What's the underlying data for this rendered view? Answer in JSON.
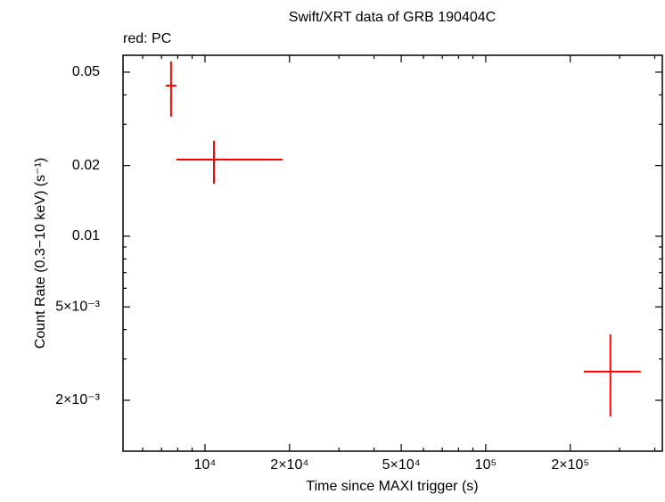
{
  "chart_data": {
    "type": "errorbar",
    "title": "Swift/XRT data of GRB 190404C",
    "subtitle": "red: PC",
    "x_label": "Time since MAXI trigger (s)",
    "y_label": "Count Rate (0.3−10 keV) (s⁻¹)",
    "x": [
      7570,
      10760,
      278000
    ],
    "xerr_minus": [
      320,
      2850,
      54500
    ],
    "xerr_plus": [
      340,
      8120,
      78500
    ],
    "values": [
      0.0438,
      0.0212,
      0.00265
    ],
    "yerr_minus": [
      0.0115,
      0.00445,
      0.00094
    ],
    "yerr_plus": [
      0.0118,
      0.0043,
      0.00117
    ],
    "color": "#ff0000",
    "xlog": true,
    "ylog": true,
    "xlim": [
      5105,
      425600
    ],
    "ylim": [
      0.001214,
      0.059
    ],
    "xticks": [
      {
        "value": 10000,
        "label": "10⁴"
      },
      {
        "value": 20000,
        "label": "2×10⁴"
      },
      {
        "value": 50000,
        "label": "5×10⁴"
      },
      {
        "value": 100000,
        "label": "10⁵"
      },
      {
        "value": 200000,
        "label": "2×10⁵"
      }
    ],
    "xminor_ticks": [
      6000,
      7000,
      8000,
      9000,
      30000,
      40000,
      60000,
      70000,
      80000,
      90000,
      300000,
      400000
    ],
    "yticks": [
      {
        "value": 0.002,
        "label": "2×10⁻³"
      },
      {
        "value": 0.005,
        "label": "5×10⁻³"
      },
      0.01,
      0.02,
      0.05
    ],
    "yminor_ticks": [
      0.003,
      0.004,
      0.006,
      0.007,
      0.008,
      0.009,
      0.03,
      0.04
    ]
  }
}
